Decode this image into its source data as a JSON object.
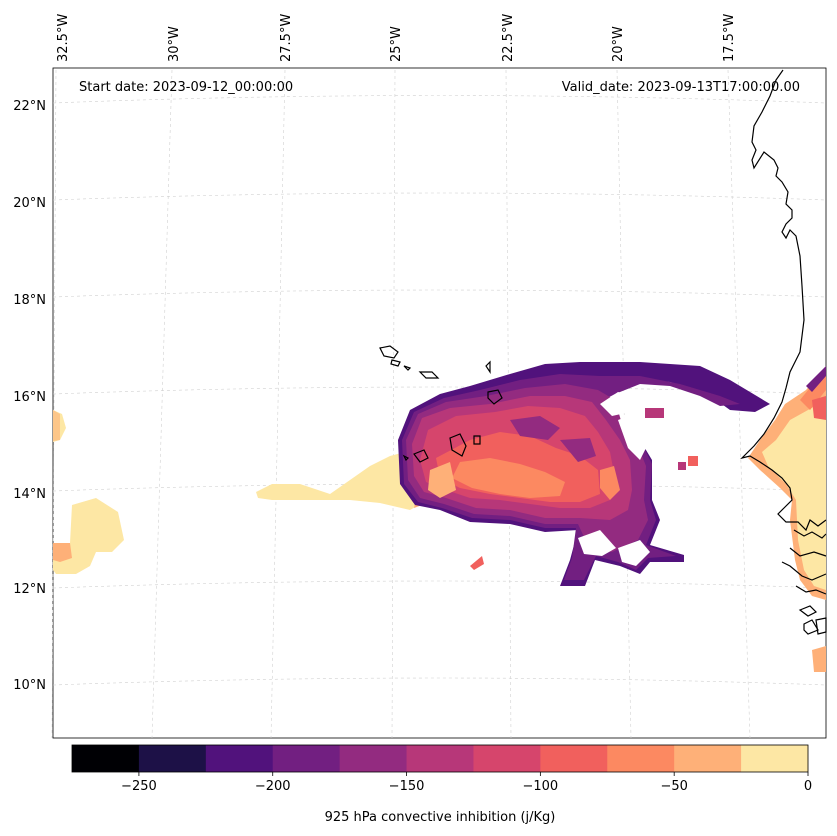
{
  "header": {
    "start_label": "Start date: 2023-09-12_00:00:00",
    "valid_label": "Valid_date: 2023-09-13T17:00:00.00"
  },
  "axes": {
    "lon_labels": [
      "32.5°W",
      "30°W",
      "27.5°W",
      "25°W",
      "22.5°W",
      "20°W",
      "17.5°W"
    ],
    "lat_labels": [
      "22°N",
      "20°N",
      "18°N",
      "16°N",
      "14°N",
      "12°N",
      "10°N"
    ]
  },
  "colorbar": {
    "title": "925 hPa convective inhibition (j/Kg)",
    "ticks": [
      "−250",
      "−200",
      "−150",
      "−100",
      "−50",
      "0"
    ],
    "colors": [
      "#000004",
      "#1d1147",
      "#51127c",
      "#721f81",
      "#932b80",
      "#b73779",
      "#d6456c",
      "#f1605d",
      "#fc8961",
      "#feb078",
      "#fde7a4"
    ]
  },
  "legend_colors": {
    "very_low": "#51127c",
    "low": "#932b80",
    "mid": "#b73779",
    "midhigh": "#d6456c",
    "high": "#f1605d",
    "higher": "#fc8961",
    "near_zero": "#feb078",
    "zero": "#fde7a4"
  }
}
